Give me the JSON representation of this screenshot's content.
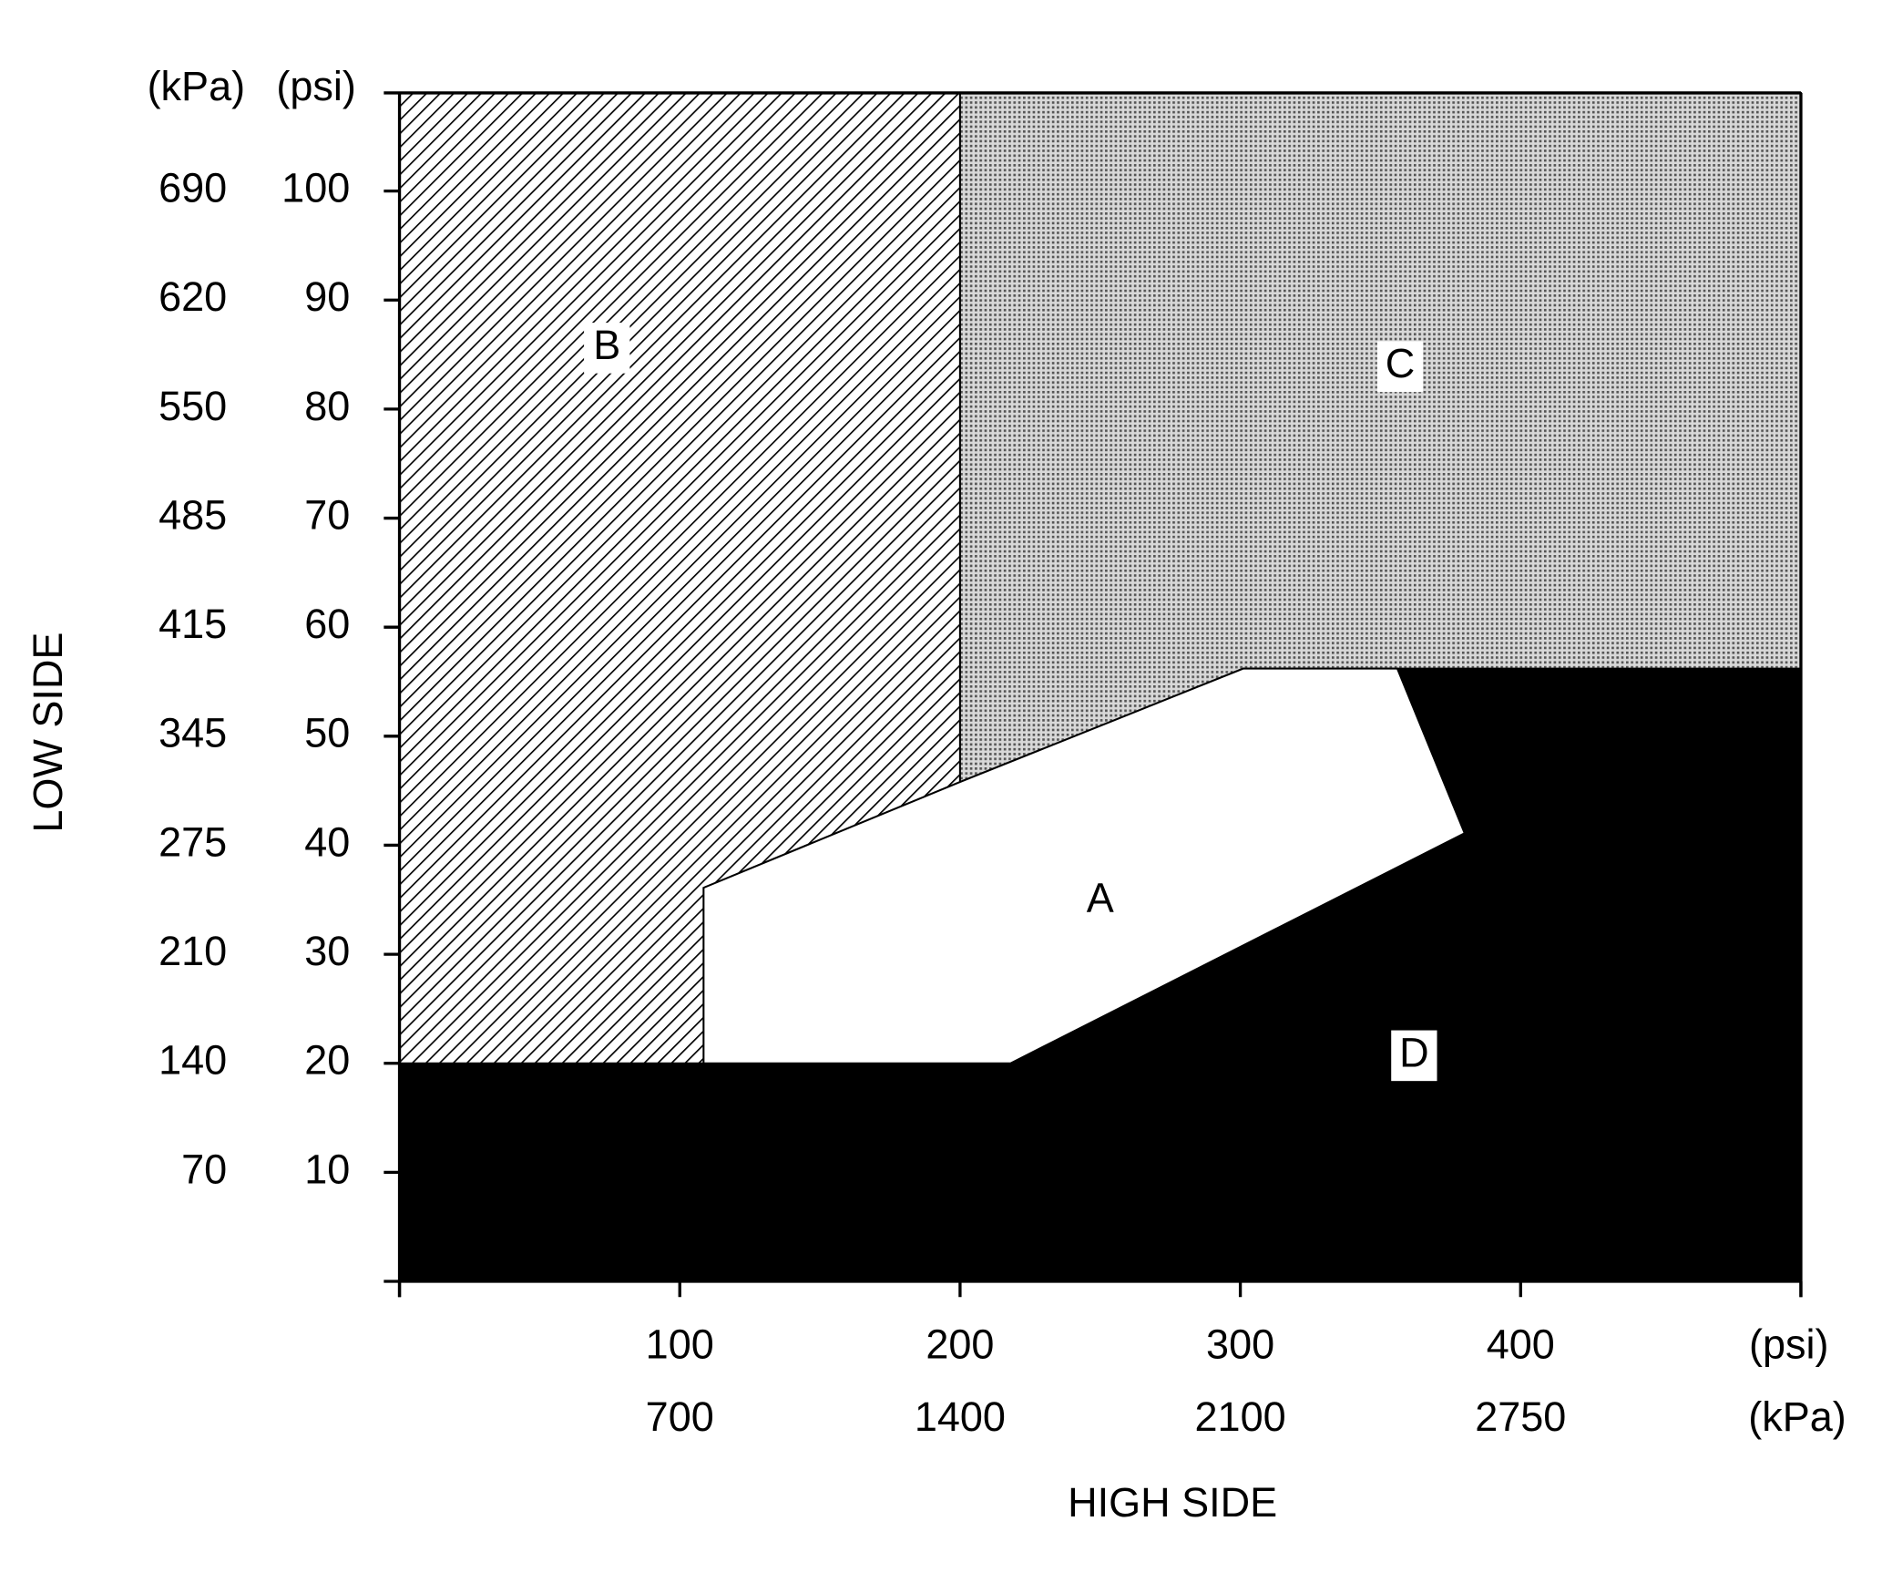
{
  "chart_data": {
    "type": "region",
    "x_title": "HIGH SIDE",
    "y_title": "LOW SIDE",
    "xlim": [
      0,
      500
    ],
    "ylim": [
      0,
      109
    ],
    "xticks": [
      0,
      100,
      200,
      300,
      400,
      500
    ],
    "x_kpa_labels": [
      700,
      1400,
      2100,
      2750
    ],
    "x_units": [
      "(psi)",
      "(kPa)"
    ],
    "yticks": [
      10,
      20,
      30,
      40,
      50,
      60,
      70,
      80,
      90,
      100
    ],
    "y_kpa_labels": [
      70,
      140,
      210,
      275,
      345,
      415,
      485,
      550,
      620,
      690
    ],
    "y_units": [
      "(kPa)",
      "(psi)"
    ],
    "regions": [
      {
        "label": "D",
        "pattern": "black",
        "x": [
          0,
          500,
          500,
          356,
          380,
          218,
          0
        ],
        "y": [
          0,
          0,
          56.2,
          56.2,
          41.1,
          20,
          20
        ]
      },
      {
        "label": "B",
        "pattern": "hatch",
        "x": [
          0,
          0,
          200,
          200,
          108.5,
          108.5
        ],
        "y": [
          20,
          109,
          109,
          45.8,
          36.1,
          20
        ]
      },
      {
        "label": "C",
        "pattern": "dots",
        "x": [
          200,
          500,
          500,
          301,
          200
        ],
        "y": [
          109,
          109,
          56.2,
          56.2,
          45.8
        ]
      },
      {
        "label": "A",
        "pattern": "white",
        "x": [
          108.5,
          218,
          380,
          356,
          301,
          200,
          108.5
        ],
        "y": [
          20,
          20,
          41.1,
          56.2,
          56.2,
          45.8,
          36.1
        ]
      }
    ]
  }
}
